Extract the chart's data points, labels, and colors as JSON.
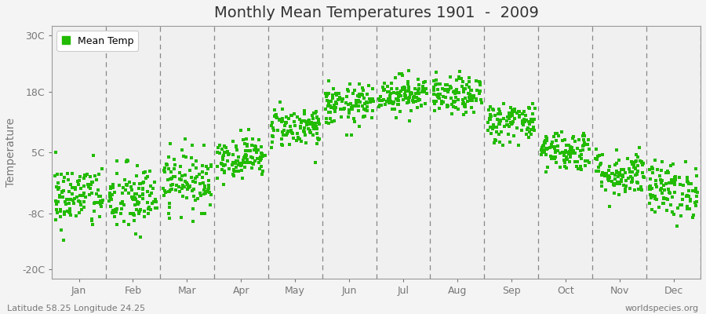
{
  "title": "Monthly Mean Temperatures 1901  -  2009",
  "ylabel": "Temperature",
  "xlabel_bottom_left": "Latitude 58.25 Longitude 24.25",
  "xlabel_bottom_right": "worldspecies.org",
  "ytick_labels": [
    "-20C",
    "-8C",
    "5C",
    "18C",
    "30C"
  ],
  "ytick_values": [
    -20,
    -8,
    5,
    18,
    30
  ],
  "ylim": [
    -22,
    32
  ],
  "months": [
    "Jan",
    "Feb",
    "Mar",
    "Apr",
    "May",
    "Jun",
    "Jul",
    "Aug",
    "Sep",
    "Oct",
    "Nov",
    "Dec"
  ],
  "dot_color": "#22BB00",
  "dot_size": 7,
  "background_color": "#f4f4f4",
  "plot_bg_color": "#f0f0f0",
  "n_years": 109,
  "mean_temps": [
    -4.5,
    -5.0,
    -1.0,
    4.0,
    10.5,
    15.0,
    17.5,
    17.0,
    11.5,
    5.5,
    0.5,
    -3.0
  ],
  "std_temps": [
    3.5,
    3.8,
    3.2,
    2.2,
    2.2,
    2.2,
    2.0,
    2.0,
    2.2,
    2.2,
    2.5,
    3.0
  ],
  "title_fontsize": 14,
  "legend_fontsize": 9,
  "axis_label_color": "#777777",
  "tick_fontsize": 9,
  "vline_color": "#888888",
  "spine_color": "#999999"
}
